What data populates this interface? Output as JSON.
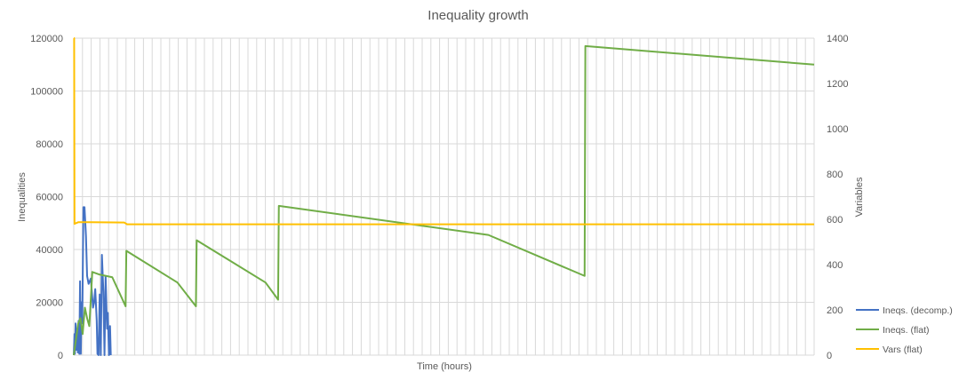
{
  "chart_data": {
    "type": "line",
    "title": "Inequality growth",
    "xlabel": "Time (hours)",
    "ylabel_left": "Inequalities",
    "ylabel_right": "Variables",
    "ylim_left": [
      0,
      120000
    ],
    "ylim_right": [
      0,
      1400
    ],
    "xlim": [
      0,
      100
    ],
    "left_ticks": [
      {
        "value": 0,
        "label": "0"
      },
      {
        "value": 20000,
        "label": "20000"
      },
      {
        "value": 40000,
        "label": "40000"
      },
      {
        "value": 60000,
        "label": "60000"
      },
      {
        "value": 80000,
        "label": "80000"
      },
      {
        "value": 100000,
        "label": "100000"
      },
      {
        "value": 120000,
        "label": "120000"
      }
    ],
    "right_ticks": [
      {
        "value": 0,
        "label": "0"
      },
      {
        "value": 200,
        "label": "200"
      },
      {
        "value": 400,
        "label": "400"
      },
      {
        "value": 600,
        "label": "600"
      },
      {
        "value": 800,
        "label": "800"
      },
      {
        "value": 1000,
        "label": "1000"
      },
      {
        "value": 1200,
        "label": "1200"
      },
      {
        "value": 1400,
        "label": "1400"
      }
    ],
    "vertical_gridlines": 85,
    "grid": true,
    "legend_position": "right-bottom",
    "series": [
      {
        "name": "Ineqs. (decomp.)",
        "axis": "left",
        "color": "#4472c4",
        "points": [
          [
            0,
            0
          ],
          [
            0.1,
            8000
          ],
          [
            0.15,
            500
          ],
          [
            0.25,
            12000
          ],
          [
            0.35,
            2000
          ],
          [
            0.45,
            10000
          ],
          [
            0.55,
            1000
          ],
          [
            0.65,
            13000
          ],
          [
            0.75,
            500
          ],
          [
            0.85,
            28000
          ],
          [
            0.95,
            500
          ],
          [
            1.05,
            20000
          ],
          [
            1.15,
            12000
          ],
          [
            1.3,
            56000
          ],
          [
            1.45,
            56000
          ],
          [
            1.65,
            45000
          ],
          [
            1.8,
            30000
          ],
          [
            2.0,
            27000
          ],
          [
            2.3,
            29000
          ],
          [
            2.6,
            18000
          ],
          [
            2.75,
            20000
          ],
          [
            2.9,
            25000
          ],
          [
            3.1,
            13000
          ],
          [
            3.2,
            500
          ],
          [
            3.35,
            0
          ],
          [
            3.5,
            23000
          ],
          [
            3.65,
            0
          ],
          [
            3.8,
            38000
          ],
          [
            4.0,
            24000
          ],
          [
            4.15,
            0
          ],
          [
            4.3,
            30000
          ],
          [
            4.5,
            10000
          ],
          [
            4.6,
            16000
          ],
          [
            4.75,
            0
          ],
          [
            4.9,
            11000
          ],
          [
            5.0,
            0
          ]
        ]
      },
      {
        "name": "Ineqs. (flat)",
        "axis": "left",
        "color": "#70ad47",
        "points": [
          [
            0,
            0
          ],
          [
            0.3,
            6000
          ],
          [
            0.6,
            12000
          ],
          [
            0.9,
            14000
          ],
          [
            1.2,
            8000
          ],
          [
            1.5,
            18000
          ],
          [
            1.8,
            14000
          ],
          [
            2.1,
            11000
          ],
          [
            2.5,
            31500
          ],
          [
            3.5,
            30500
          ],
          [
            5.2,
            29500
          ],
          [
            7.0,
            18500
          ],
          [
            7.1,
            39500
          ],
          [
            14.0,
            27500
          ],
          [
            16.5,
            18500
          ],
          [
            16.6,
            43500
          ],
          [
            25.9,
            27500
          ],
          [
            27.6,
            21000
          ],
          [
            27.7,
            56500
          ],
          [
            56.0,
            45500
          ],
          [
            69.0,
            30000
          ],
          [
            69.1,
            117000
          ],
          [
            100.0,
            110000
          ]
        ]
      },
      {
        "name": "Vars (flat)",
        "axis": "right",
        "color": "#ffc000",
        "points": [
          [
            0,
            1400
          ],
          [
            0.05,
            1400
          ],
          [
            0.1,
            580
          ],
          [
            0.6,
            587
          ],
          [
            2.0,
            587
          ],
          [
            6.8,
            586
          ],
          [
            7.2,
            578
          ],
          [
            100.0,
            578
          ]
        ]
      }
    ]
  }
}
